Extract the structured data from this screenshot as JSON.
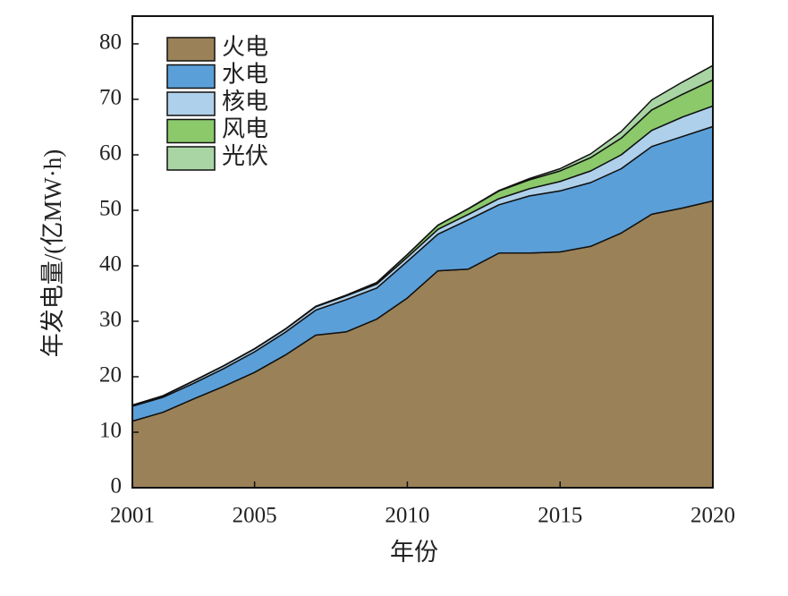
{
  "chart_data": {
    "type": "stacked_area",
    "x_label": "年份",
    "y_label": "年发电量/(亿MW·h)",
    "x": [
      2001,
      2002,
      2003,
      2004,
      2005,
      2006,
      2007,
      2008,
      2009,
      2010,
      2011,
      2012,
      2013,
      2014,
      2015,
      2016,
      2017,
      2018,
      2019,
      2020
    ],
    "series": [
      {
        "name": "火电",
        "color": "#9a8158",
        "values": [
          12.0,
          13.6,
          16.0,
          18.3,
          20.8,
          23.9,
          27.5,
          28.1,
          30.4,
          34.2,
          39.1,
          39.4,
          42.3,
          42.3,
          42.5,
          43.5,
          45.9,
          49.3,
          50.4,
          51.7
        ]
      },
      {
        "name": "水电",
        "color": "#5b9fd8",
        "values": [
          2.7,
          2.7,
          2.8,
          3.2,
          3.7,
          4.1,
          4.5,
          5.8,
          5.6,
          6.6,
          6.6,
          8.9,
          8.7,
          10.3,
          11.0,
          11.5,
          11.6,
          12.2,
          12.9,
          13.4
        ]
      },
      {
        "name": "核电",
        "color": "#aed0ea",
        "values": [
          0.17,
          0.25,
          0.43,
          0.5,
          0.53,
          0.55,
          0.62,
          0.68,
          0.7,
          0.74,
          0.87,
          0.98,
          1.1,
          1.3,
          1.7,
          2.1,
          2.5,
          2.9,
          3.5,
          3.7
        ]
      },
      {
        "name": "风电",
        "color": "#8bc96b",
        "values": [
          0.01,
          0.01,
          0.01,
          0.01,
          0.02,
          0.03,
          0.06,
          0.13,
          0.28,
          0.49,
          0.74,
          1.0,
          1.4,
          1.6,
          1.9,
          2.4,
          3.0,
          3.7,
          4.1,
          4.7
        ]
      },
      {
        "name": "光伏",
        "color": "#a9d5a5",
        "values": [
          0,
          0,
          0,
          0,
          0,
          0,
          0,
          0,
          0,
          0,
          0.01,
          0.04,
          0.08,
          0.24,
          0.4,
          0.67,
          1.2,
          1.8,
          2.2,
          2.6
        ]
      }
    ],
    "xlim": [
      2001,
      2020
    ],
    "xticks": [
      2001,
      2005,
      2010,
      2015,
      2020
    ],
    "ylim": [
      0,
      85
    ],
    "yticks": [
      0,
      10,
      20,
      30,
      40,
      50,
      60,
      70,
      80
    ],
    "legend": "upper left",
    "grid": false
  }
}
